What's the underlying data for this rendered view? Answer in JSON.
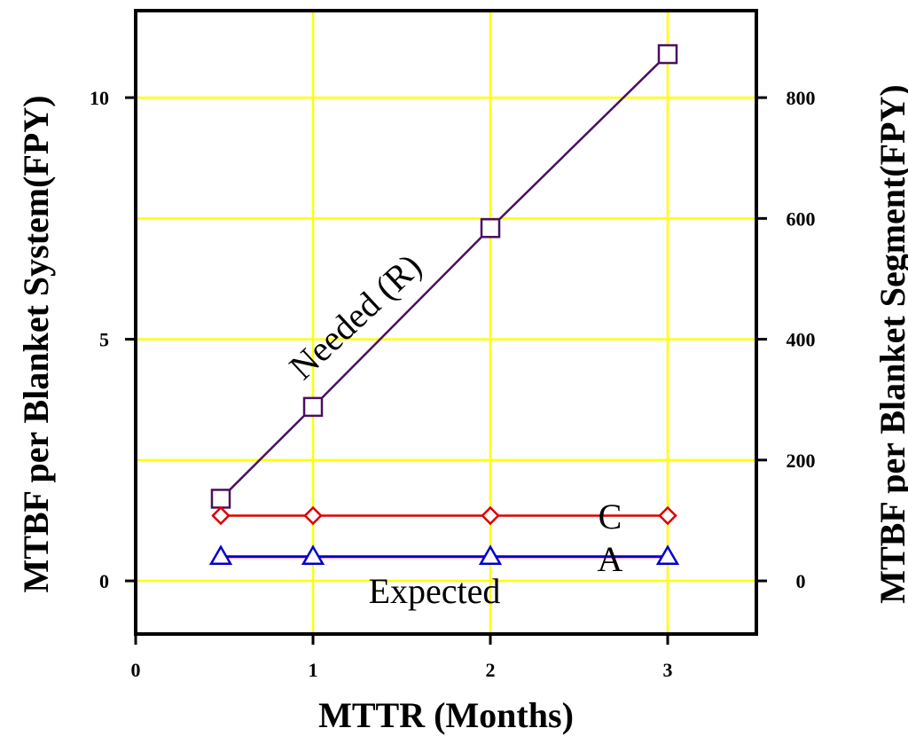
{
  "chart_data": {
    "type": "line",
    "xlabel": "MTTR (Months)",
    "ylabel": "MTBF per Blanket System(FPY)",
    "y2label": "MTBF per Blanket Segment(FPY)",
    "xlim": [
      0,
      3.5
    ],
    "ylim": [
      -1.1,
      11.8
    ],
    "y2lim": [
      -88,
      944
    ],
    "x_ticks": [
      "0",
      "1",
      "2",
      "3"
    ],
    "y_ticks": [
      "0",
      "5",
      "10"
    ],
    "y2_ticks": [
      "0",
      "200",
      "400",
      "600",
      "800"
    ],
    "grid": true,
    "colors": {
      "grid": "#ffff00",
      "needed": "#4b0f5f",
      "c": "#dd0000",
      "a": "#0000cc",
      "expected": "#ff33cc"
    },
    "series": [
      {
        "key": "needed",
        "name": "Needed (R)",
        "marker": "square",
        "axis": "left",
        "x": [
          0.48,
          1,
          2,
          3
        ],
        "y": [
          1.7,
          3.6,
          7.3,
          10.9
        ]
      },
      {
        "key": "c",
        "name": "C",
        "marker": "diamond",
        "axis": "left",
        "x": [
          0.48,
          1,
          2,
          3
        ],
        "y": [
          1.35,
          1.35,
          1.35,
          1.35
        ]
      },
      {
        "key": "expected",
        "name": "Expected",
        "marker": "none",
        "axis": "left",
        "x": [
          0.48,
          1,
          2,
          3
        ],
        "y": [
          0.5,
          0.5,
          0.5,
          0.5
        ]
      },
      {
        "key": "a",
        "name": "A",
        "marker": "triangle",
        "axis": "left",
        "x": [
          0.48,
          1,
          2,
          3
        ],
        "y": [
          0.5,
          0.5,
          0.5,
          0.5
        ]
      }
    ],
    "annotations": [
      {
        "key": "needed",
        "text": "Needed (R)"
      },
      {
        "key": "c",
        "text": "C"
      },
      {
        "key": "a",
        "text": "A"
      },
      {
        "key": "expected",
        "text": "Expected"
      }
    ]
  }
}
